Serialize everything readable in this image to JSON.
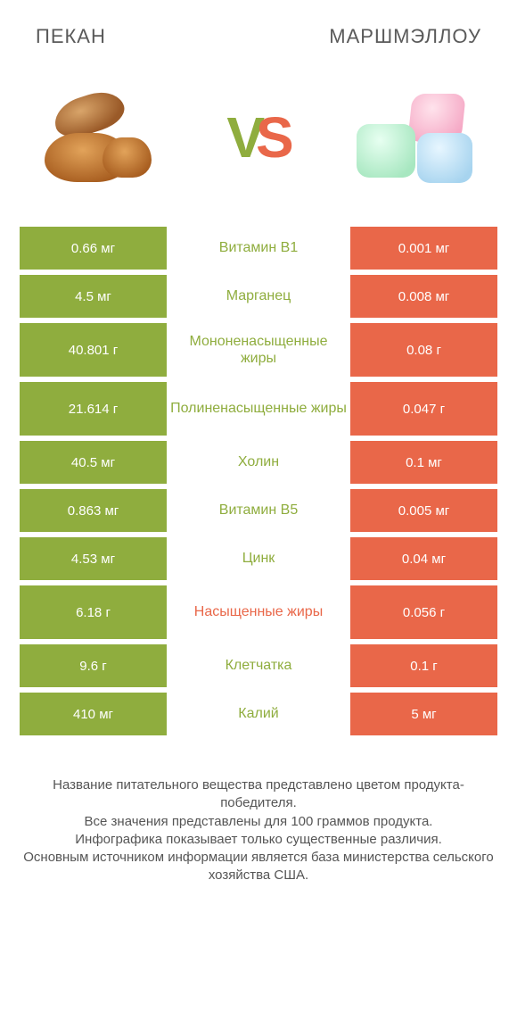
{
  "colors": {
    "left": "#8fad3e",
    "right": "#e96749",
    "label_left": "#8fad3e",
    "label_right": "#e96749",
    "text": "#ffffff",
    "footnote": "#555555"
  },
  "fonts": {
    "title_size": 22,
    "vs_size": 64,
    "cell_value_size": 15,
    "cell_label_size": 16,
    "footnote_size": 15
  },
  "header": {
    "left_title": "ПЕКАН",
    "right_title": "МАРШМЭЛЛОУ"
  },
  "vs": {
    "v": "V",
    "s": "S"
  },
  "rows": [
    {
      "left": "0.66 мг",
      "label": "Витамин B1",
      "right": "0.001 мг",
      "winner": "left",
      "tall": false
    },
    {
      "left": "4.5 мг",
      "label": "Марганец",
      "right": "0.008 мг",
      "winner": "left",
      "tall": false
    },
    {
      "left": "40.801 г",
      "label": "Мононенасыщенные жиры",
      "right": "0.08 г",
      "winner": "left",
      "tall": true
    },
    {
      "left": "21.614 г",
      "label": "Полиненасыщенные жиры",
      "right": "0.047 г",
      "winner": "left",
      "tall": true
    },
    {
      "left": "40.5 мг",
      "label": "Холин",
      "right": "0.1 мг",
      "winner": "left",
      "tall": false
    },
    {
      "left": "0.863 мг",
      "label": "Витамин B5",
      "right": "0.005 мг",
      "winner": "left",
      "tall": false
    },
    {
      "left": "4.53 мг",
      "label": "Цинк",
      "right": "0.04 мг",
      "winner": "left",
      "tall": false
    },
    {
      "left": "6.18 г",
      "label": "Насыщенные жиры",
      "right": "0.056 г",
      "winner": "right",
      "tall": true
    },
    {
      "left": "9.6 г",
      "label": "Клетчатка",
      "right": "0.1 г",
      "winner": "left",
      "tall": false
    },
    {
      "left": "410 мг",
      "label": "Калий",
      "right": "5 мг",
      "winner": "left",
      "tall": false
    }
  ],
  "footnote": "Название питательного вещества представлено цветом продукта-победителя.\nВсе значения представлены для 100 граммов продукта.\nИнфографика показывает только существенные различия.\nОсновным источником информации является база министерства сельского хозяйства США."
}
